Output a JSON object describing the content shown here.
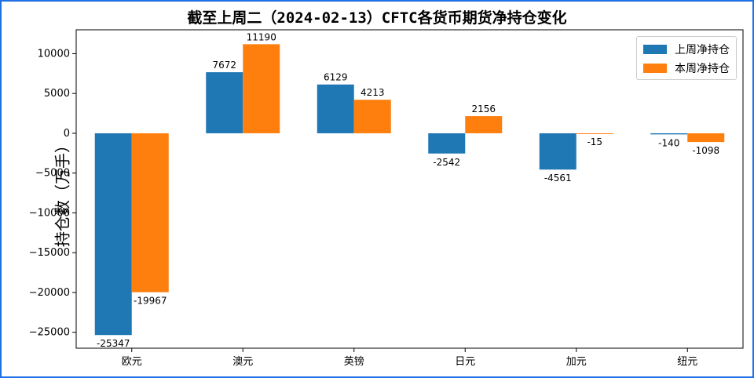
{
  "chart_data": {
    "type": "bar",
    "title": "截至上周二（2024-02-13）CFTC各货币期货净持仓变化",
    "ylabel": "持仓数（万手）",
    "xlabel": "",
    "categories": [
      "欧元",
      "澳元",
      "英镑",
      "日元",
      "加元",
      "纽元"
    ],
    "series": [
      {
        "name": "上周净持仓",
        "color": "#1f77b4",
        "values": [
          -25347,
          7672,
          6129,
          -2542,
          -4561,
          -140
        ]
      },
      {
        "name": "本周净持仓",
        "color": "#ff7f0e",
        "values": [
          -19967,
          11190,
          4213,
          2156,
          -15,
          -1098
        ]
      }
    ],
    "ylim": [
      -27000,
      13000
    ],
    "yticks": [
      10000,
      5000,
      0,
      -5000,
      -10000,
      -15000,
      -20000,
      -25000
    ],
    "grid": false,
    "legend_position": "top-right"
  }
}
